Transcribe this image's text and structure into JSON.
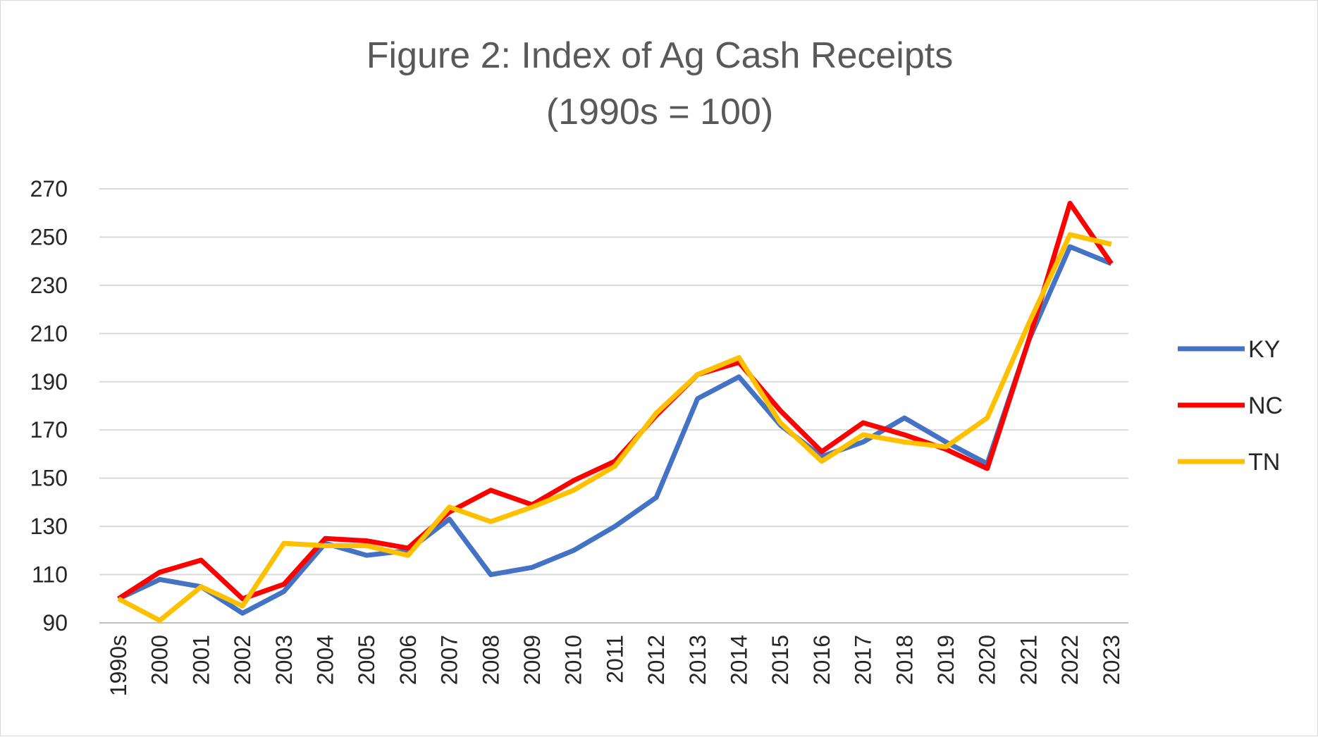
{
  "chart_data": {
    "type": "line",
    "title": "Figure 2: Index of Ag Cash Receipts",
    "subtitle": "(1990s = 100)",
    "categories": [
      "1990s",
      "2000",
      "2001",
      "2002",
      "2003",
      "2004",
      "2005",
      "2006",
      "2007",
      "2008",
      "2009",
      "2010",
      "2011",
      "2012",
      "2013",
      "2014",
      "2015",
      "2016",
      "2017",
      "2018",
      "2019",
      "2020",
      "2021",
      "2022",
      "2023"
    ],
    "ylim": [
      90,
      270
    ],
    "yticks": [
      90,
      110,
      130,
      150,
      170,
      190,
      210,
      230,
      250,
      270
    ],
    "grid": true,
    "legend_position": "right",
    "series": [
      {
        "name": "KY",
        "color": "#4472C4",
        "values": [
          100,
          108,
          105,
          94,
          103,
          123,
          118,
          120,
          133,
          110,
          113,
          120,
          130,
          142,
          183,
          192,
          172,
          159,
          165,
          175,
          165,
          156,
          207,
          246,
          239
        ]
      },
      {
        "name": "NC",
        "color": "#FF0000",
        "values": [
          100,
          111,
          116,
          100,
          106,
          125,
          124,
          121,
          136,
          145,
          139,
          149,
          157,
          176,
          193,
          198,
          178,
          161,
          173,
          168,
          162,
          154,
          207,
          264,
          239
        ]
      },
      {
        "name": "TN",
        "color": "#FFC000",
        "values": [
          100,
          91,
          105,
          97,
          123,
          122,
          122,
          118,
          138,
          132,
          138,
          145,
          155,
          177,
          193,
          200,
          173,
          157,
          168,
          165,
          163,
          175,
          214,
          251,
          247
        ]
      }
    ]
  }
}
